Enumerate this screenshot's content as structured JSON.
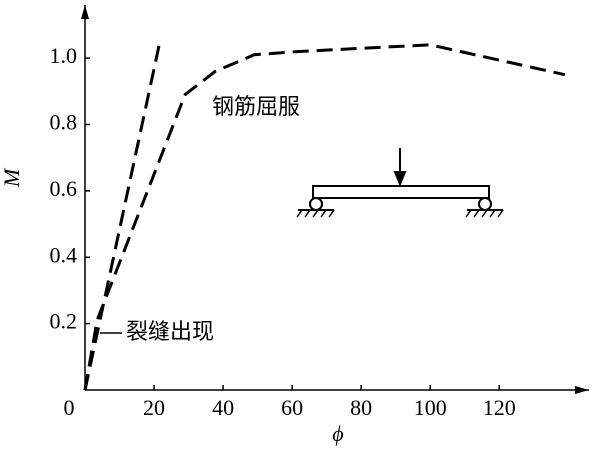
{
  "chart_data": {
    "type": "line",
    "x_label": "ϕ",
    "y_label": "M",
    "annotations": [
      "钢筋屈服",
      "裂缝出现"
    ],
    "series": [
      {
        "color": "#000000",
        "x": [
          0,
          21.7
        ],
        "values": [
          0,
          1.05
        ]
      },
      {
        "color": "#000000",
        "x": [
          0,
          3.5,
          29,
          37.7,
          49,
          62,
          100,
          139
        ],
        "values": [
          0,
          0.21,
          0.89,
          0.96,
          1.01,
          1.02,
          1.04,
          0.95
        ]
      }
    ],
    "xlim": [
      0,
      146
    ],
    "ylim": [
      0,
      1.16
    ],
    "xticks": [
      0,
      20,
      40,
      60,
      80,
      100,
      120
    ],
    "yticks": [
      0.2,
      0.4,
      0.6,
      0.8,
      {
        "value": 1,
        "label": "1.0"
      }
    ]
  }
}
